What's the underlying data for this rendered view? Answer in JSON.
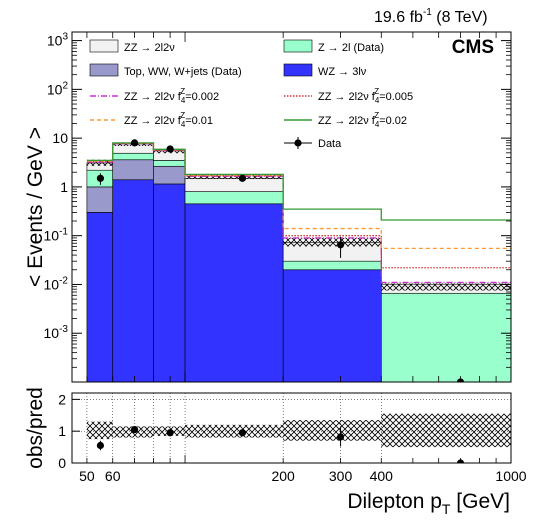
{
  "header": {
    "lumi_value": "19.6 fb",
    "lumi_exp": "-1",
    "lumi_energy": " (8 TeV)",
    "experiment": "CMS"
  },
  "colors": {
    "zz2l2nu": "#f2f2f2",
    "z2l_data": "#99ffcc",
    "top_ww_wjets": "#9999cc",
    "wz3lnu": "#3333ff",
    "f4_0002": "#cc33cc",
    "f4_0005": "#cc3333",
    "f4_001": "#ff9933",
    "f4_002": "#339933",
    "data": "#000000"
  },
  "legend": {
    "zz2l2nu": "ZZ → 2l2ν",
    "z2l_data": "Z → 2l (Data)",
    "top_ww_wjets": "Top, WW, W+jets (Data)",
    "wz3lnu": "WZ → 3lν",
    "f4_0002_pre": "ZZ → 2l2ν f",
    "f4_0002_val": "=0.002",
    "f4_0005_pre": "ZZ → 2l2ν f",
    "f4_0005_val": "=0.005",
    "f4_001_pre": "ZZ → 2l2ν f",
    "f4_001_val": "=0.01",
    "f4_002_pre": "ZZ → 2l2ν f",
    "f4_002_val": "=0.02",
    "f_sub": "4",
    "f_sup": "Z",
    "data": "Data"
  },
  "chart_data": [
    {
      "type": "bar",
      "title": "",
      "ylabel": "< Events / GeV >",
      "xscale": "log",
      "yscale": "log",
      "xlim": [
        45,
        1000
      ],
      "ylim": [
        0.0001,
        1500
      ],
      "stacked": true,
      "bin_edges": [
        50,
        60,
        80,
        100,
        200,
        400,
        1000
      ],
      "series": [
        {
          "name": "WZ → 3lν",
          "values": [
            0.3,
            1.4,
            1.15,
            0.45,
            0.02,
            0.0001
          ]
        },
        {
          "name": "Top, WW, W+jets (Data)",
          "values": [
            0.7,
            2.2,
            1.5,
            0.0,
            0.0,
            0.0
          ]
        },
        {
          "name": "Z → 2l (Data)",
          "values": [
            1.2,
            1.3,
            0.85,
            0.35,
            0.01,
            0.0065
          ]
        },
        {
          "name": "ZZ → 2l2ν",
          "values": [
            0.9,
            2.7,
            2.0,
            0.7,
            0.043,
            0.0035
          ]
        }
      ],
      "uncertainty_band": {
        "low": [
          2.7,
          6.9,
          4.9,
          1.45,
          0.06,
          0.0075
        ],
        "high": [
          3.6,
          8.1,
          5.9,
          1.75,
          0.09,
          0.0105
        ]
      },
      "signals": [
        {
          "name": "ZZ → 2l2ν f4Z=0.002",
          "values": [
            3.2,
            7.7,
            5.6,
            1.65,
            0.09,
            0.011
          ]
        },
        {
          "name": "ZZ → 2l2ν f4Z=0.005",
          "values": [
            3.3,
            7.8,
            5.7,
            1.7,
            0.1,
            0.022
          ]
        },
        {
          "name": "ZZ → 2l2ν f4Z=0.01",
          "values": [
            3.4,
            7.9,
            5.8,
            1.75,
            0.14,
            0.055
          ]
        },
        {
          "name": "ZZ → 2l2ν f4Z=0.02",
          "values": [
            3.5,
            8.0,
            5.9,
            1.8,
            0.35,
            0.21
          ]
        }
      ],
      "data_points": {
        "name": "Data",
        "x": [
          55,
          70,
          90,
          150,
          300,
          700
        ],
        "y": [
          1.5,
          8.0,
          6.0,
          1.5,
          0.065,
          0.0001
        ],
        "yerr": [
          0.4,
          0.6,
          0.5,
          0.15,
          0.03,
          0
        ]
      }
    },
    {
      "type": "scatter",
      "title": "",
      "xlabel": "Dilepton p",
      "xlabel_sub": "T",
      "xlabel_unit": " [GeV]",
      "ylabel": "obs/pred",
      "xscale": "log",
      "xlim": [
        45,
        1000
      ],
      "ylim": [
        0,
        2.2
      ],
      "x_ticks": [
        "50",
        "60",
        "200",
        "300",
        "400",
        "1000"
      ],
      "y_ticks": [
        "0",
        "1",
        "2"
      ],
      "band_low": [
        0.75,
        0.8,
        0.85,
        0.8,
        0.7,
        0.5
      ],
      "band_high": [
        1.3,
        1.15,
        1.15,
        1.2,
        1.35,
        1.55
      ],
      "x": [
        55,
        70,
        90,
        150,
        300,
        700
      ],
      "y": [
        0.55,
        1.05,
        0.95,
        0.95,
        0.82,
        0.0
      ],
      "yerr": [
        0.15,
        0.1,
        0.1,
        0.1,
        0.3,
        0
      ]
    }
  ]
}
